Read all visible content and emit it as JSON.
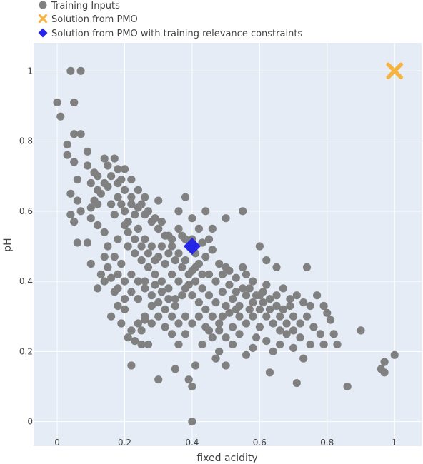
{
  "chart_data": {
    "type": "scatter",
    "title": "",
    "xlabel": "fixed acidity",
    "ylabel": "pH",
    "xlim": [
      -0.07,
      1.08
    ],
    "ylim": [
      -0.07,
      1.08
    ],
    "x_ticks": [
      0,
      0.2,
      0.4,
      0.6,
      0.8,
      1
    ],
    "y_ticks": [
      0,
      0.2,
      0.4,
      0.6,
      0.8,
      1
    ],
    "grid": true,
    "legend_position": "top-left",
    "colors": {
      "plot_bg": "#e5ecf6",
      "grid": "#ffffff",
      "training": "#808080",
      "pmo": "#f5b342",
      "pmo_constrained": "#2626e6"
    },
    "series": [
      {
        "name": "Training Inputs",
        "marker": "circle",
        "points": [
          [
            0.0,
            0.91
          ],
          [
            0.01,
            0.87
          ],
          [
            0.04,
            1.0
          ],
          [
            0.07,
            1.0
          ],
          [
            0.05,
            0.91
          ],
          [
            0.03,
            0.79
          ],
          [
            0.05,
            0.82
          ],
          [
            0.07,
            0.82
          ],
          [
            0.03,
            0.76
          ],
          [
            0.05,
            0.74
          ],
          [
            0.06,
            0.69
          ],
          [
            0.09,
            0.77
          ],
          [
            0.09,
            0.73
          ],
          [
            0.11,
            0.71
          ],
          [
            0.1,
            0.68
          ],
          [
            0.12,
            0.7
          ],
          [
            0.04,
            0.65
          ],
          [
            0.06,
            0.63
          ],
          [
            0.07,
            0.6
          ],
          [
            0.04,
            0.59
          ],
          [
            0.05,
            0.57
          ],
          [
            0.06,
            0.51
          ],
          [
            0.09,
            0.51
          ],
          [
            0.1,
            0.45
          ],
          [
            0.13,
            0.42
          ],
          [
            0.12,
            0.38
          ],
          [
            0.14,
            0.4
          ],
          [
            0.17,
            0.37
          ],
          [
            0.18,
            0.33
          ],
          [
            0.16,
            0.3
          ],
          [
            0.19,
            0.28
          ],
          [
            0.2,
            0.32
          ],
          [
            0.22,
            0.26
          ],
          [
            0.21,
            0.24
          ],
          [
            0.23,
            0.23
          ],
          [
            0.25,
            0.22
          ],
          [
            0.22,
            0.16
          ],
          [
            0.25,
            0.26
          ],
          [
            0.26,
            0.29
          ],
          [
            0.27,
            0.22
          ],
          [
            0.3,
            0.12
          ],
          [
            0.35,
            0.15
          ],
          [
            0.39,
            0.12
          ],
          [
            0.4,
            0.1
          ],
          [
            0.4,
            0.0
          ],
          [
            0.41,
            0.16
          ],
          [
            0.43,
            0.22
          ],
          [
            0.45,
            0.26
          ],
          [
            0.47,
            0.18
          ],
          [
            0.48,
            0.2
          ],
          [
            0.5,
            0.16
          ],
          [
            0.52,
            0.22
          ],
          [
            0.54,
            0.25
          ],
          [
            0.56,
            0.19
          ],
          [
            0.58,
            0.21
          ],
          [
            0.59,
            0.24
          ],
          [
            0.6,
            0.27
          ],
          [
            0.62,
            0.23
          ],
          [
            0.63,
            0.14
          ],
          [
            0.64,
            0.2
          ],
          [
            0.66,
            0.22
          ],
          [
            0.68,
            0.25
          ],
          [
            0.7,
            0.21
          ],
          [
            0.71,
            0.11
          ],
          [
            0.73,
            0.18
          ],
          [
            0.75,
            0.22
          ],
          [
            0.76,
            0.27
          ],
          [
            0.78,
            0.25
          ],
          [
            0.79,
            0.22
          ],
          [
            0.81,
            0.29
          ],
          [
            0.82,
            0.25
          ],
          [
            0.83,
            0.22
          ],
          [
            0.86,
            0.1
          ],
          [
            0.9,
            0.26
          ],
          [
            0.96,
            0.15
          ],
          [
            0.97,
            0.17
          ],
          [
            0.97,
            0.14
          ],
          [
            1.0,
            0.19
          ],
          [
            0.14,
            0.75
          ],
          [
            0.15,
            0.73
          ],
          [
            0.17,
            0.75
          ],
          [
            0.18,
            0.72
          ],
          [
            0.19,
            0.69
          ],
          [
            0.2,
            0.72
          ],
          [
            0.22,
            0.69
          ],
          [
            0.24,
            0.66
          ],
          [
            0.25,
            0.62
          ],
          [
            0.26,
            0.64
          ],
          [
            0.27,
            0.6
          ],
          [
            0.29,
            0.58
          ],
          [
            0.3,
            0.55
          ],
          [
            0.31,
            0.57
          ],
          [
            0.33,
            0.53
          ],
          [
            0.34,
            0.52
          ],
          [
            0.36,
            0.55
          ],
          [
            0.37,
            0.53
          ],
          [
            0.38,
            0.52
          ],
          [
            0.41,
            0.48
          ],
          [
            0.43,
            0.51
          ],
          [
            0.44,
            0.47
          ],
          [
            0.46,
            0.49
          ],
          [
            0.48,
            0.45
          ],
          [
            0.49,
            0.42
          ],
          [
            0.5,
            0.44
          ],
          [
            0.51,
            0.43
          ],
          [
            0.53,
            0.41
          ],
          [
            0.55,
            0.44
          ],
          [
            0.56,
            0.42
          ],
          [
            0.57,
            0.38
          ],
          [
            0.58,
            0.4
          ],
          [
            0.6,
            0.36
          ],
          [
            0.61,
            0.37
          ],
          [
            0.62,
            0.39
          ],
          [
            0.63,
            0.35
          ],
          [
            0.65,
            0.33
          ],
          [
            0.66,
            0.3
          ],
          [
            0.67,
            0.32
          ],
          [
            0.69,
            0.35
          ],
          [
            0.7,
            0.3
          ],
          [
            0.72,
            0.28
          ],
          [
            0.74,
            0.3
          ],
          [
            0.75,
            0.33
          ],
          [
            0.77,
            0.36
          ],
          [
            0.79,
            0.33
          ],
          [
            0.8,
            0.31
          ],
          [
            0.6,
            0.5
          ],
          [
            0.62,
            0.46
          ],
          [
            0.65,
            0.44
          ],
          [
            0.74,
            0.44
          ],
          [
            0.55,
            0.6
          ],
          [
            0.5,
            0.58
          ],
          [
            0.46,
            0.55
          ],
          [
            0.44,
            0.6
          ],
          [
            0.4,
            0.58
          ],
          [
            0.36,
            0.6
          ],
          [
            0.38,
            0.64
          ],
          [
            0.3,
            0.63
          ],
          [
            0.22,
            0.62
          ],
          [
            0.23,
            0.59
          ],
          [
            0.2,
            0.56
          ],
          [
            0.18,
            0.52
          ],
          [
            0.15,
            0.5
          ],
          [
            0.14,
            0.54
          ],
          [
            0.12,
            0.56
          ],
          [
            0.1,
            0.58
          ],
          [
            0.12,
            0.62
          ],
          [
            0.13,
            0.65
          ],
          [
            0.15,
            0.67
          ],
          [
            0.16,
            0.62
          ],
          [
            0.18,
            0.64
          ],
          [
            0.2,
            0.6
          ],
          [
            0.21,
            0.57
          ],
          [
            0.24,
            0.55
          ],
          [
            0.26,
            0.52
          ],
          [
            0.28,
            0.5
          ],
          [
            0.3,
            0.47
          ],
          [
            0.32,
            0.45
          ],
          [
            0.34,
            0.42
          ],
          [
            0.36,
            0.4
          ],
          [
            0.38,
            0.38
          ],
          [
            0.4,
            0.36
          ],
          [
            0.42,
            0.34
          ],
          [
            0.44,
            0.32
          ],
          [
            0.46,
            0.3
          ],
          [
            0.48,
            0.28
          ],
          [
            0.5,
            0.33
          ],
          [
            0.52,
            0.35
          ],
          [
            0.54,
            0.3
          ],
          [
            0.56,
            0.28
          ],
          [
            0.58,
            0.3
          ],
          [
            0.6,
            0.32
          ],
          [
            0.62,
            0.3
          ],
          [
            0.64,
            0.28
          ],
          [
            0.66,
            0.26
          ],
          [
            0.68,
            0.28
          ],
          [
            0.7,
            0.26
          ],
          [
            0.72,
            0.24
          ],
          [
            0.35,
            0.35
          ],
          [
            0.33,
            0.38
          ],
          [
            0.31,
            0.4
          ],
          [
            0.29,
            0.42
          ],
          [
            0.27,
            0.44
          ],
          [
            0.25,
            0.46
          ],
          [
            0.23,
            0.48
          ],
          [
            0.21,
            0.5
          ],
          [
            0.19,
            0.45
          ],
          [
            0.17,
            0.47
          ],
          [
            0.15,
            0.44
          ],
          [
            0.14,
            0.47
          ],
          [
            0.16,
            0.41
          ],
          [
            0.18,
            0.42
          ],
          [
            0.2,
            0.4
          ],
          [
            0.22,
            0.42
          ],
          [
            0.24,
            0.4
          ],
          [
            0.26,
            0.38
          ],
          [
            0.28,
            0.36
          ],
          [
            0.3,
            0.34
          ],
          [
            0.32,
            0.32
          ],
          [
            0.34,
            0.3
          ],
          [
            0.36,
            0.28
          ],
          [
            0.38,
            0.3
          ],
          [
            0.4,
            0.28
          ],
          [
            0.42,
            0.3
          ],
          [
            0.44,
            0.27
          ],
          [
            0.46,
            0.24
          ],
          [
            0.48,
            0.26
          ],
          [
            0.5,
            0.24
          ],
          [
            0.52,
            0.27
          ],
          [
            0.54,
            0.33
          ],
          [
            0.56,
            0.36
          ],
          [
            0.58,
            0.34
          ],
          [
            0.31,
            0.5
          ],
          [
            0.33,
            0.48
          ],
          [
            0.35,
            0.46
          ],
          [
            0.37,
            0.44
          ],
          [
            0.39,
            0.42
          ],
          [
            0.41,
            0.4
          ],
          [
            0.43,
            0.38
          ],
          [
            0.45,
            0.36
          ],
          [
            0.47,
            0.34
          ],
          [
            0.49,
            0.37
          ],
          [
            0.51,
            0.39
          ],
          [
            0.53,
            0.37
          ],
          [
            0.42,
            0.45
          ],
          [
            0.4,
            0.43
          ],
          [
            0.38,
            0.46
          ],
          [
            0.36,
            0.48
          ],
          [
            0.34,
            0.5
          ],
          [
            0.32,
            0.53
          ],
          [
            0.3,
            0.55
          ],
          [
            0.28,
            0.57
          ],
          [
            0.26,
            0.59
          ],
          [
            0.24,
            0.61
          ],
          [
            0.22,
            0.64
          ],
          [
            0.2,
            0.66
          ],
          [
            0.18,
            0.68
          ],
          [
            0.16,
            0.7
          ],
          [
            0.14,
            0.68
          ],
          [
            0.12,
            0.66
          ],
          [
            0.11,
            0.63
          ],
          [
            0.1,
            0.61
          ],
          [
            0.17,
            0.59
          ],
          [
            0.19,
            0.62
          ],
          [
            0.21,
            0.54
          ],
          [
            0.23,
            0.52
          ],
          [
            0.25,
            0.5
          ],
          [
            0.27,
            0.48
          ],
          [
            0.29,
            0.46
          ],
          [
            0.26,
            0.4
          ],
          [
            0.28,
            0.33
          ],
          [
            0.3,
            0.3
          ],
          [
            0.32,
            0.27
          ],
          [
            0.34,
            0.25
          ],
          [
            0.36,
            0.22
          ],
          [
            0.38,
            0.25
          ],
          [
            0.24,
            0.35
          ],
          [
            0.22,
            0.37
          ],
          [
            0.2,
            0.35
          ],
          [
            0.18,
            0.38
          ],
          [
            0.26,
            0.3
          ],
          [
            0.28,
            0.28
          ],
          [
            0.24,
            0.28
          ],
          [
            0.45,
            0.42
          ],
          [
            0.47,
            0.4
          ],
          [
            0.49,
            0.3
          ],
          [
            0.51,
            0.31
          ],
          [
            0.53,
            0.32
          ],
          [
            0.55,
            0.38
          ],
          [
            0.57,
            0.32
          ],
          [
            0.59,
            0.36
          ],
          [
            0.61,
            0.34
          ],
          [
            0.63,
            0.32
          ],
          [
            0.65,
            0.36
          ],
          [
            0.67,
            0.38
          ],
          [
            0.69,
            0.33
          ],
          [
            0.71,
            0.36
          ],
          [
            0.73,
            0.34
          ],
          [
            0.4,
            0.52
          ],
          [
            0.42,
            0.55
          ],
          [
            0.45,
            0.52
          ],
          [
            0.43,
            0.42
          ],
          [
            0.41,
            0.44
          ],
          [
            0.39,
            0.39
          ],
          [
            0.37,
            0.36
          ],
          [
            0.35,
            0.33
          ],
          [
            0.33,
            0.35
          ],
          [
            0.31,
            0.37
          ],
          [
            0.29,
            0.39
          ]
        ]
      },
      {
        "name": "Solution from PMO",
        "marker": "x",
        "points": [
          [
            1.0,
            1.0
          ]
        ]
      },
      {
        "name": "Solution from PMO with training relevance constraints",
        "marker": "diamond",
        "points": [
          [
            0.4,
            0.5
          ]
        ]
      }
    ]
  }
}
